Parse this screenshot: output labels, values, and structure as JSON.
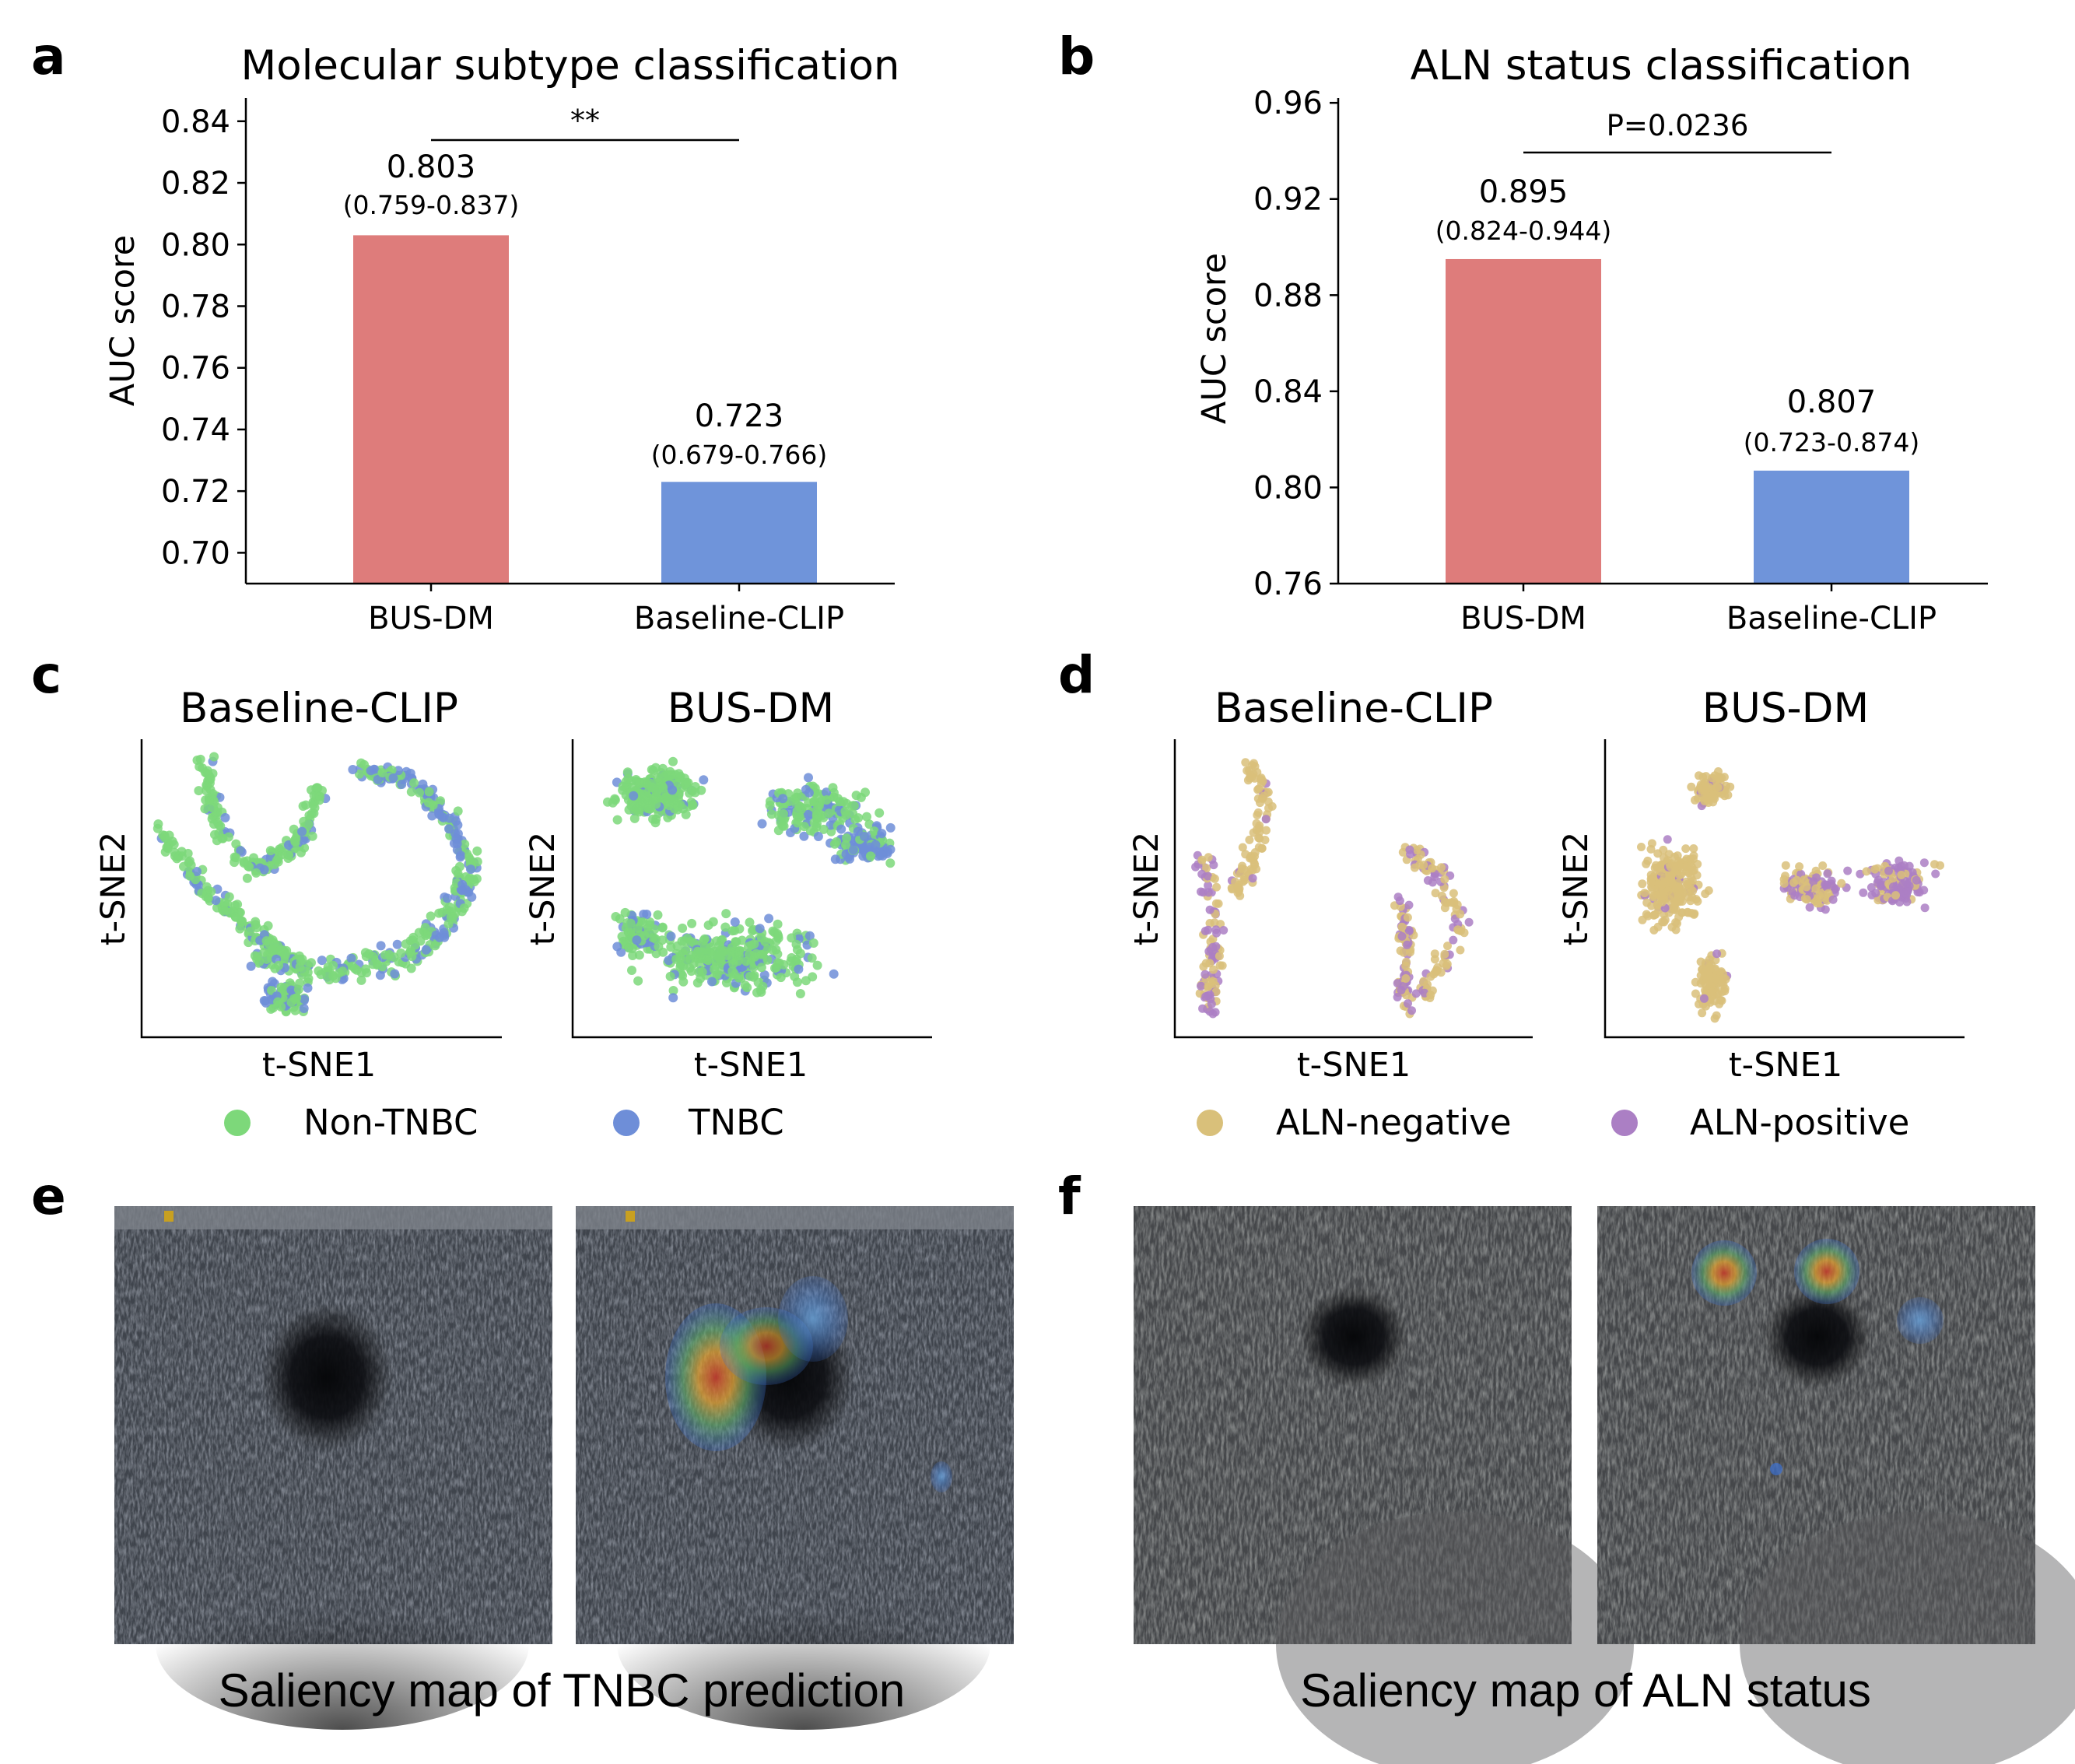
{
  "colors": {
    "bus_dm": "#de7c7b",
    "baseline_clip": "#6f94da",
    "non_tnbc": "#7dd87a",
    "tnbc": "#6e8ed8",
    "aln_negative": "#d9c07a",
    "aln_positive": "#ab7fc4"
  },
  "panels": {
    "a": "a",
    "b": "b",
    "c": "c",
    "d": "d",
    "e": "e",
    "f": "f"
  },
  "chart_data": [
    {
      "id": "a",
      "type": "bar",
      "title": "Molecular subtype classification",
      "xlabel": "",
      "ylabel": "AUC score",
      "categories": [
        "BUS-DM",
        "Baseline-CLIP"
      ],
      "values": [
        0.803,
        0.723
      ],
      "value_labels": [
        "0.803",
        "0.723"
      ],
      "ci_labels": [
        "(0.759-0.837)",
        "(0.679-0.766)"
      ],
      "yticks": [
        "0.70",
        "0.72",
        "0.74",
        "0.76",
        "0.78",
        "0.80",
        "0.82",
        "0.84"
      ],
      "ylim": [
        0.69,
        0.845
      ],
      "significance": "**"
    },
    {
      "id": "b",
      "type": "bar",
      "title": "ALN status classification",
      "xlabel": "",
      "ylabel": "AUC score",
      "categories": [
        "BUS-DM",
        "Baseline-CLIP"
      ],
      "values": [
        0.895,
        0.807
      ],
      "value_labels": [
        "0.895",
        "0.807"
      ],
      "ci_labels": [
        "(0.824-0.944)",
        "(0.723-0.874)"
      ],
      "yticks": [
        "0.76",
        "0.80",
        "0.84",
        "0.88",
        "0.92",
        "0.96"
      ],
      "ylim": [
        0.76,
        0.962
      ],
      "significance": "P=0.0236"
    },
    {
      "id": "c",
      "type": "scatter",
      "subplots": [
        "Baseline-CLIP",
        "BUS-DM"
      ],
      "xlabel": "t-SNE1",
      "ylabel": "t-SNE2",
      "legend": [
        "Non-TNBC",
        "TNBC"
      ]
    },
    {
      "id": "d",
      "type": "scatter",
      "subplots": [
        "Baseline-CLIP",
        "BUS-DM"
      ],
      "xlabel": "t-SNE1",
      "ylabel": "t-SNE2",
      "legend": [
        "ALN-negative",
        "ALN-positive"
      ]
    }
  ],
  "captions": {
    "e": "Saliency map of TNBC prediction",
    "f": "Saliency map of ALN status"
  }
}
